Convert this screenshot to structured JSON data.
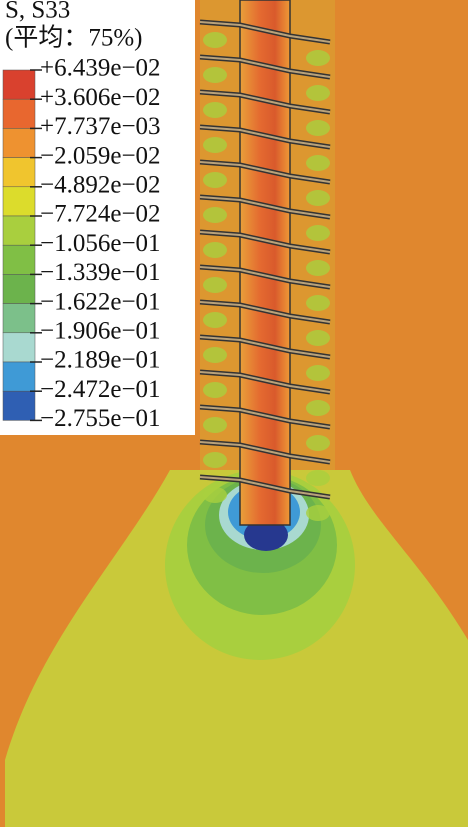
{
  "legend": {
    "title": "S, S33",
    "subtitle": "(平均：75%)",
    "labels": [
      "+6.439e−02",
      "+3.606e−02",
      "+7.737e−03",
      "−2.059e−02",
      "−4.892e−02",
      "−7.724e−02",
      "−1.056e−01",
      "−1.339e−01",
      "−1.622e−01",
      "−1.906e−01",
      "−2.189e−01",
      "−2.472e−01",
      "−2.755e−01"
    ],
    "colors": [
      "#d9412e",
      "#e8672f",
      "#ee9230",
      "#f0c52e",
      "#dcdc2c",
      "#a9cf3e",
      "#80bf45",
      "#6cb34c",
      "#7cc08a",
      "#a9d9d0",
      "#3f9ad6",
      "#2f5fb3",
      "#26388f"
    ]
  }
}
